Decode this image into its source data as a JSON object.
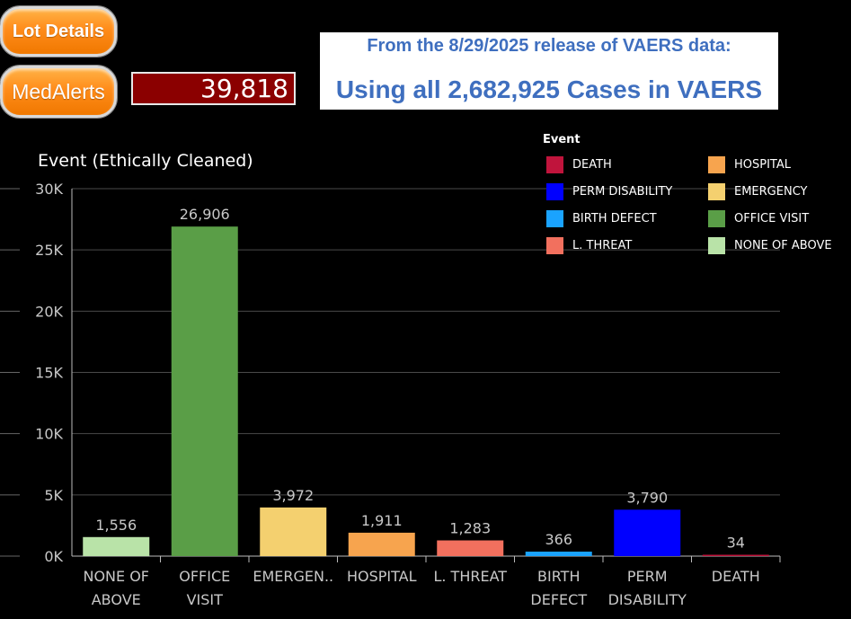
{
  "buttons": {
    "lot_details": "Lot Details",
    "medalerts": "MedAlerts"
  },
  "total_count": "39,818",
  "banner": {
    "line1": "From the 8/29/2025 release of VAERS data:",
    "line2": "Using all 2,682,925 Cases in VAERS"
  },
  "colors": {
    "background": "#000000",
    "banner_text": "#3f6fbf",
    "count_box": "#8b0000",
    "button": "#ff8c1a"
  },
  "legend": {
    "title": "Event",
    "items": [
      {
        "label": "DEATH",
        "color": "#c0143c"
      },
      {
        "label": "PERM DISABILITY",
        "color": "#0000ff"
      },
      {
        "label": "BIRTH DEFECT",
        "color": "#1aa3ff"
      },
      {
        "label": "L. THREAT",
        "color": "#f2705e"
      },
      {
        "label": "HOSPITAL",
        "color": "#f7a44e"
      },
      {
        "label": "EMERGENCY",
        "color": "#f4d06f"
      },
      {
        "label": "OFFICE VISIT",
        "color": "#5a9e47"
      },
      {
        "label": "NONE OF ABOVE",
        "color": "#b9e3a8"
      }
    ]
  },
  "chart_data": {
    "type": "bar",
    "title": "Event (Ethically Cleaned)",
    "categories": [
      [
        "NONE OF",
        "ABOVE"
      ],
      [
        "OFFICE",
        "VISIT"
      ],
      [
        "EMERGEN.."
      ],
      [
        "HOSPITAL"
      ],
      [
        "L. THREAT"
      ],
      [
        "BIRTH",
        "DEFECT"
      ],
      [
        "PERM",
        "DISABILITY"
      ],
      [
        "DEATH"
      ]
    ],
    "values": [
      1556,
      26906,
      3972,
      1911,
      1283,
      366,
      3790,
      34
    ],
    "value_labels": [
      "1,556",
      "26,906",
      "3,972",
      "1,911",
      "1,283",
      "366",
      "3,790",
      "34"
    ],
    "colors": [
      "#b9e3a8",
      "#5a9e47",
      "#f4d06f",
      "#f7a44e",
      "#f2705e",
      "#1aa3ff",
      "#0000ff",
      "#c0143c"
    ],
    "y_ticks": [
      0,
      5000,
      10000,
      15000,
      20000,
      25000,
      30000
    ],
    "y_tick_labels": [
      "0K",
      "5K",
      "10K",
      "15K",
      "20K",
      "25K",
      "30K"
    ],
    "ylim": [
      0,
      30000
    ],
    "grid": true,
    "legend_position": "top-right"
  }
}
